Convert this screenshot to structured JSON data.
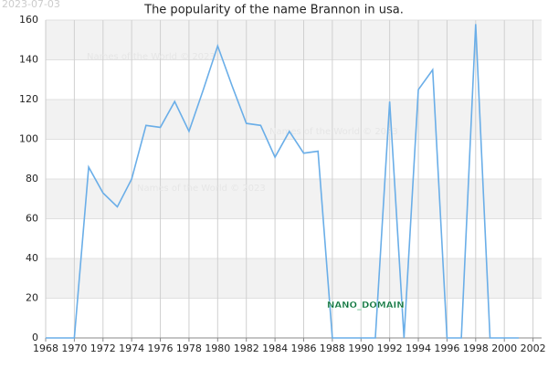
{
  "chart_data": {
    "type": "line",
    "title": "The popularity of the name Brannon in usa.",
    "date_stamp": "2023-07-03",
    "watermarks": [
      "Names of the World © 2023",
      "Names of the World © 2023",
      "Names of the World © 2023"
    ],
    "badge": "NANO_DOMAIN",
    "x": [
      1968,
      1969,
      1970,
      1971,
      1972,
      1973,
      1974,
      1975,
      1976,
      1977,
      1978,
      1979,
      1980,
      1981,
      1982,
      1983,
      1984,
      1985,
      1986,
      1987,
      1988,
      1989,
      1990,
      1991,
      1992,
      1993,
      1994,
      1995,
      1996,
      1997,
      1998,
      1999,
      2000,
      2001
    ],
    "series": [
      {
        "color": "#6aaee8",
        "values": [
          0,
          0,
          0,
          86,
          73,
          66,
          80,
          107,
          106,
          119,
          104,
          125,
          147,
          127,
          108,
          107,
          91,
          104,
          93,
          94,
          0,
          0,
          0,
          0,
          119,
          0,
          125,
          135,
          0,
          0,
          158,
          0,
          0,
          0
        ]
      }
    ],
    "xlim": [
      1968,
      2002.6
    ],
    "ylim": [
      0,
      160
    ],
    "xticks": [
      1968,
      1970,
      1972,
      1974,
      1976,
      1978,
      1980,
      1982,
      1984,
      1986,
      1988,
      1990,
      1992,
      1994,
      1996,
      1998,
      2000,
      2002
    ],
    "yticks": [
      0,
      20,
      40,
      60,
      80,
      100,
      120,
      140,
      160
    ],
    "grid": true
  }
}
